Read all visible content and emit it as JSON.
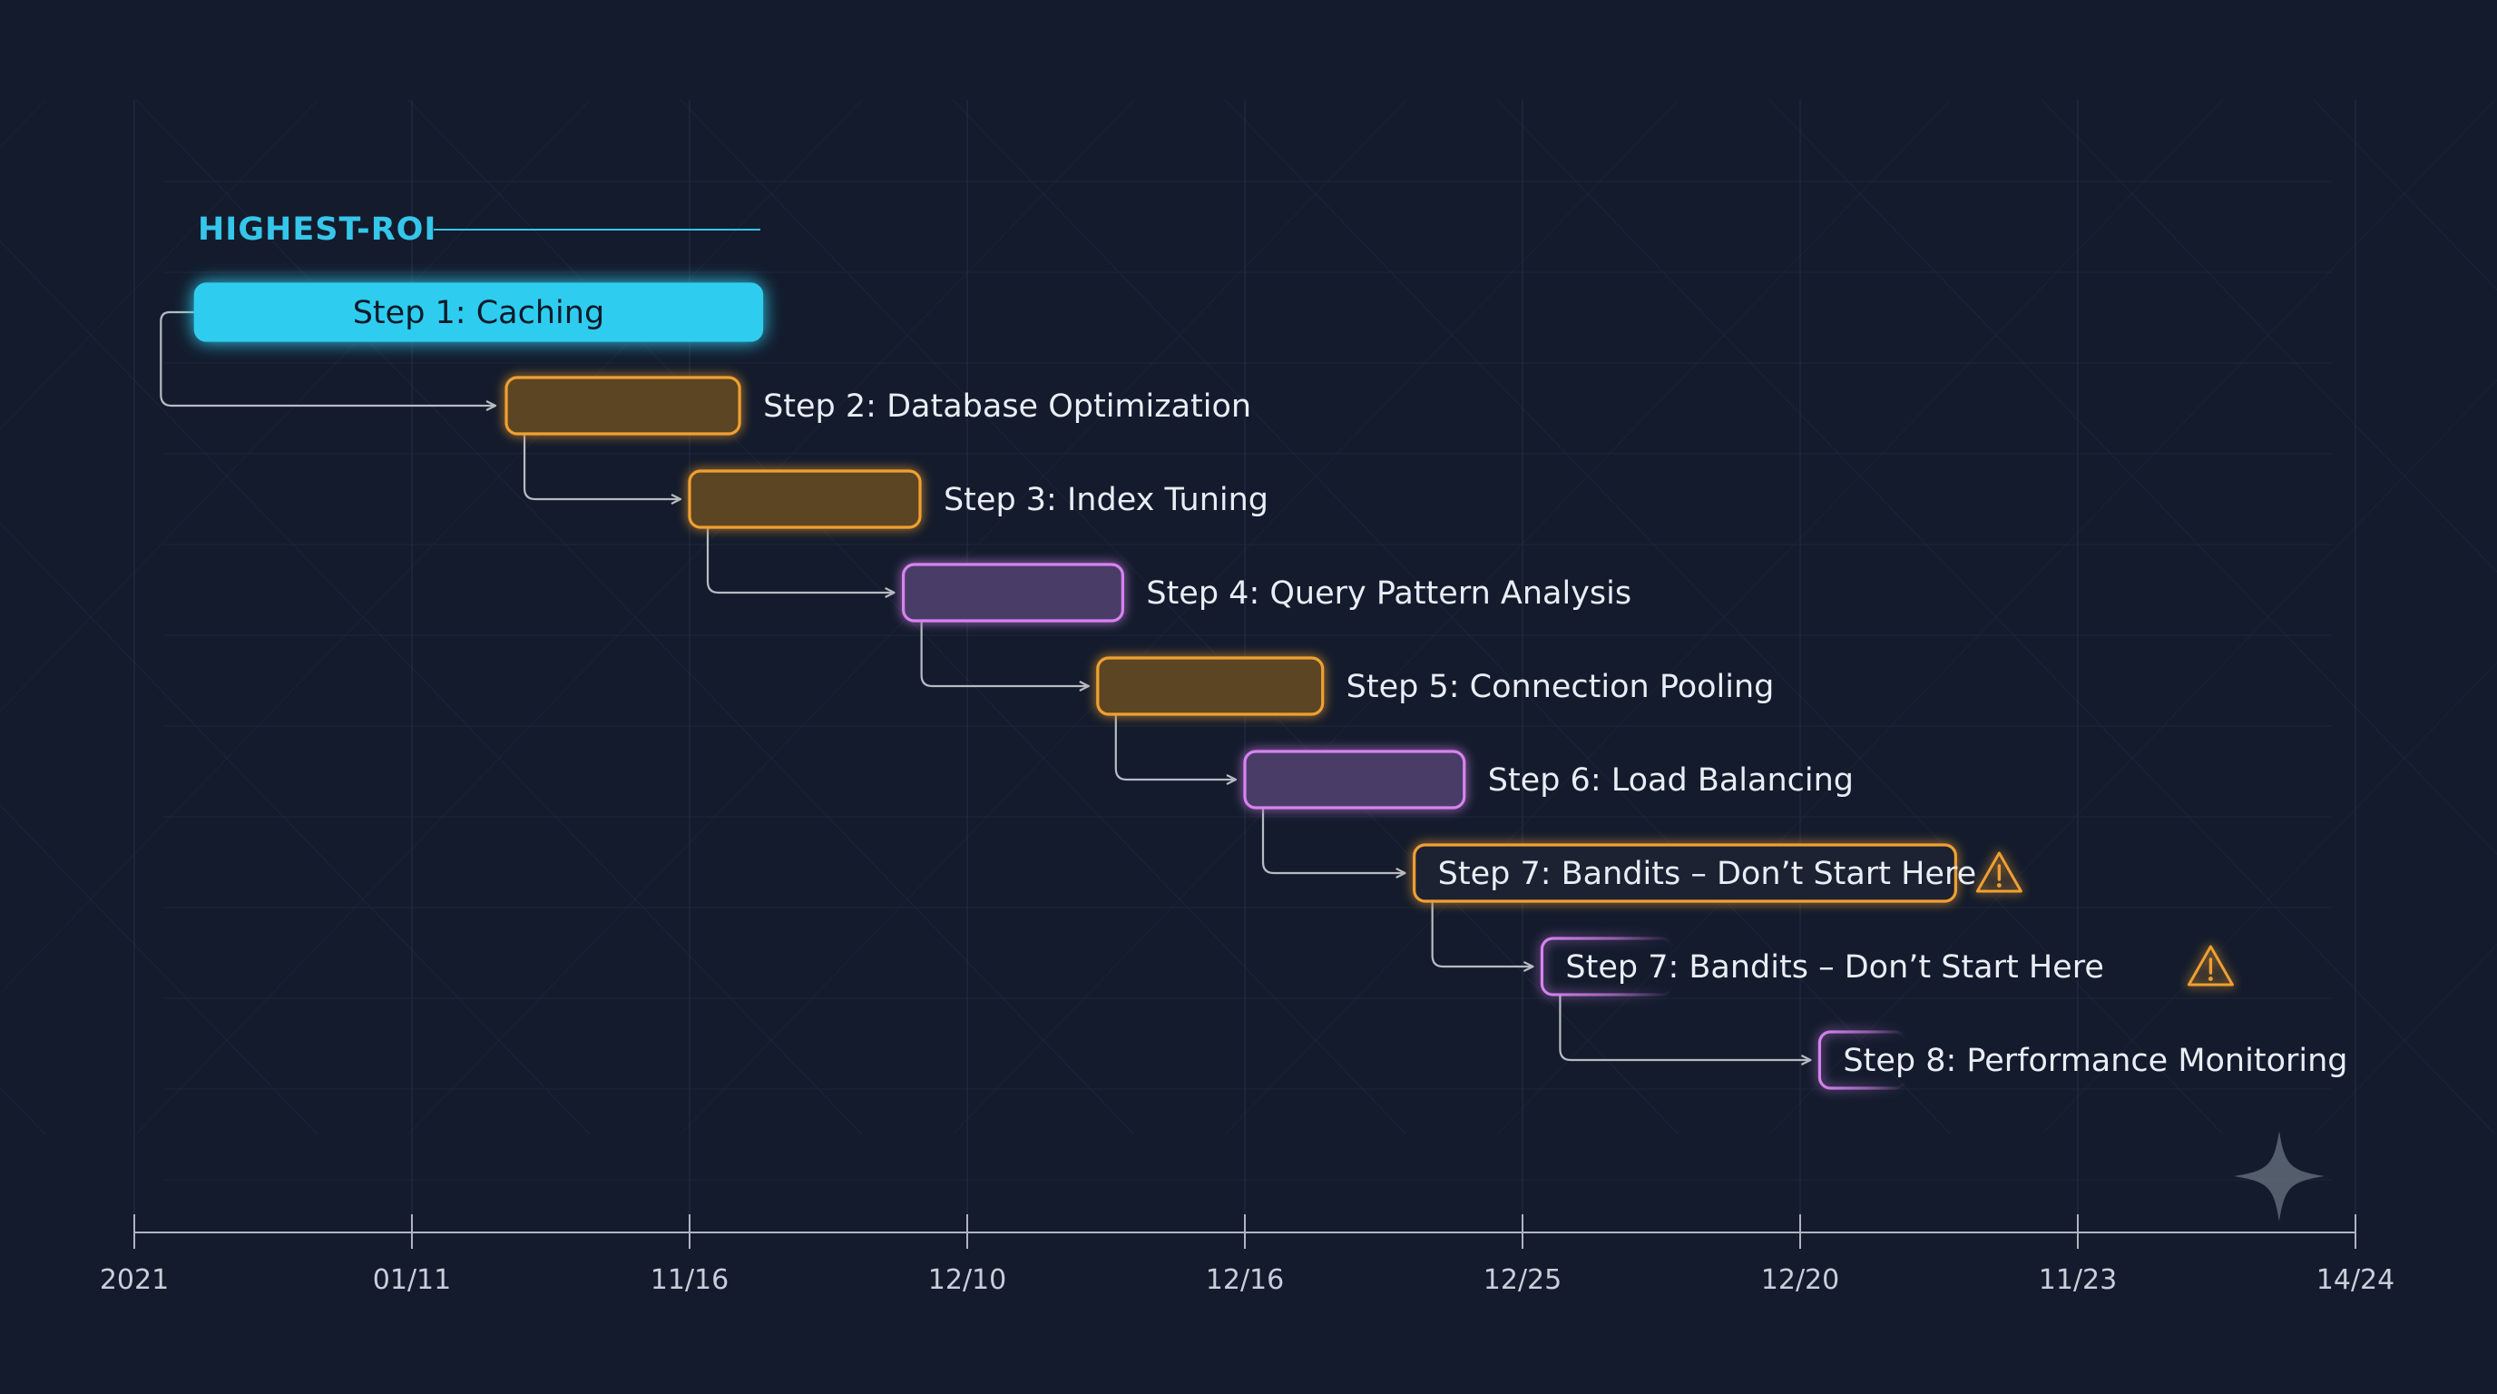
{
  "chart_data": {
    "type": "gantt",
    "section_label": "HIGHEST-ROI",
    "x_ticks": [
      "2021",
      "01/11",
      "11/16",
      "12/10",
      "12/16",
      "12/25",
      "12/20",
      "11/23",
      "14/24"
    ],
    "tasks": [
      {
        "label": "Step 1: Caching",
        "start": 0.22,
        "end": 2.26,
        "style": "filled-cyan"
      },
      {
        "label": "Step 2: Database Optimization",
        "start": 1.34,
        "end": 2.18,
        "style": "orange"
      },
      {
        "label": "Step 3: Index Tuning",
        "start": 2.0,
        "end": 2.83,
        "style": "orange"
      },
      {
        "label": "Step 4: Query Pattern Analysis",
        "start": 2.77,
        "end": 3.56,
        "style": "purple"
      },
      {
        "label": "Step 5: Connection Pooling",
        "start": 3.47,
        "end": 4.28,
        "style": "orange"
      },
      {
        "label": "Step 6: Load Balancing",
        "start": 4.0,
        "end": 4.79,
        "style": "purple"
      },
      {
        "label": "Step 7: Bandits – Don’t Start Here",
        "start": 4.61,
        "end": 6.56,
        "style": "orange-text-inside",
        "warning": true
      },
      {
        "label": "Step 7: Bandits – Don’t Start Here",
        "start": 5.07,
        "end": 5.54,
        "style": "purple-fade",
        "warning": true
      },
      {
        "label": "Step 8: Performance Monitoring",
        "start": 6.07,
        "end": 6.38,
        "style": "purple-fade"
      }
    ],
    "colors": {
      "background": "#131b2c",
      "cyan": "#2fcdef",
      "orange": "#f0a030",
      "purple": "#d783f0",
      "axis": "#aeb4c0",
      "connector": "#d4d7de"
    },
    "grid": true,
    "icons": {
      "warning": "warning-triangle-icon",
      "logo": "sparkle-icon"
    }
  }
}
